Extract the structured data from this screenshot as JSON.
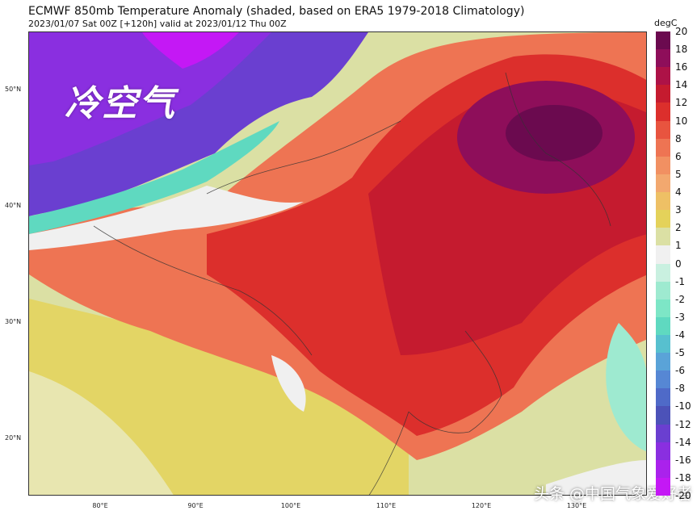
{
  "header": {
    "title": "ECMWF 850mb Temperature Anomaly (shaded, based on ERA5 1979-2018 Climatology)",
    "subtitle": "2023/01/07 Sat 00Z [+120h] valid at 2023/01/12 Thu 00Z"
  },
  "map": {
    "overlay_text": "冷空气",
    "watermark": "头条 @中国气象爱好者",
    "lat_labels": [
      "50°N",
      "40°N",
      "30°N",
      "20°N"
    ],
    "lon_labels": [
      "80°E",
      "90°E",
      "100°E",
      "110°E",
      "120°E",
      "130°E"
    ]
  },
  "colorbar": {
    "unit": "degC",
    "labels": [
      "20",
      "18",
      "16",
      "14",
      "12",
      "10",
      "8",
      "6",
      "5",
      "4",
      "3",
      "2",
      "1",
      "0",
      "-1",
      "-2",
      "-3",
      "-4",
      "-5",
      "-6",
      "-8",
      "-10",
      "-12",
      "-14",
      "-16",
      "-18",
      "-20"
    ],
    "colors": [
      "#6b0a4f",
      "#8e0e5a",
      "#ad1247",
      "#c51b2f",
      "#dc2f2c",
      "#e8543f",
      "#ee7453",
      "#f19062",
      "#f2a86f",
      "#eec065",
      "#e4d25a",
      "#dbe0a4",
      "#f0f0f0",
      "#c9f0e0",
      "#9eead0",
      "#7de6c6",
      "#5fd9c0",
      "#57c0cf",
      "#5aa3d8",
      "#5687d4",
      "#4f6ac8",
      "#4c52b8",
      "#6a3fd0",
      "#8a2fe0",
      "#aa22ec",
      "#c418f5"
    ]
  }
}
